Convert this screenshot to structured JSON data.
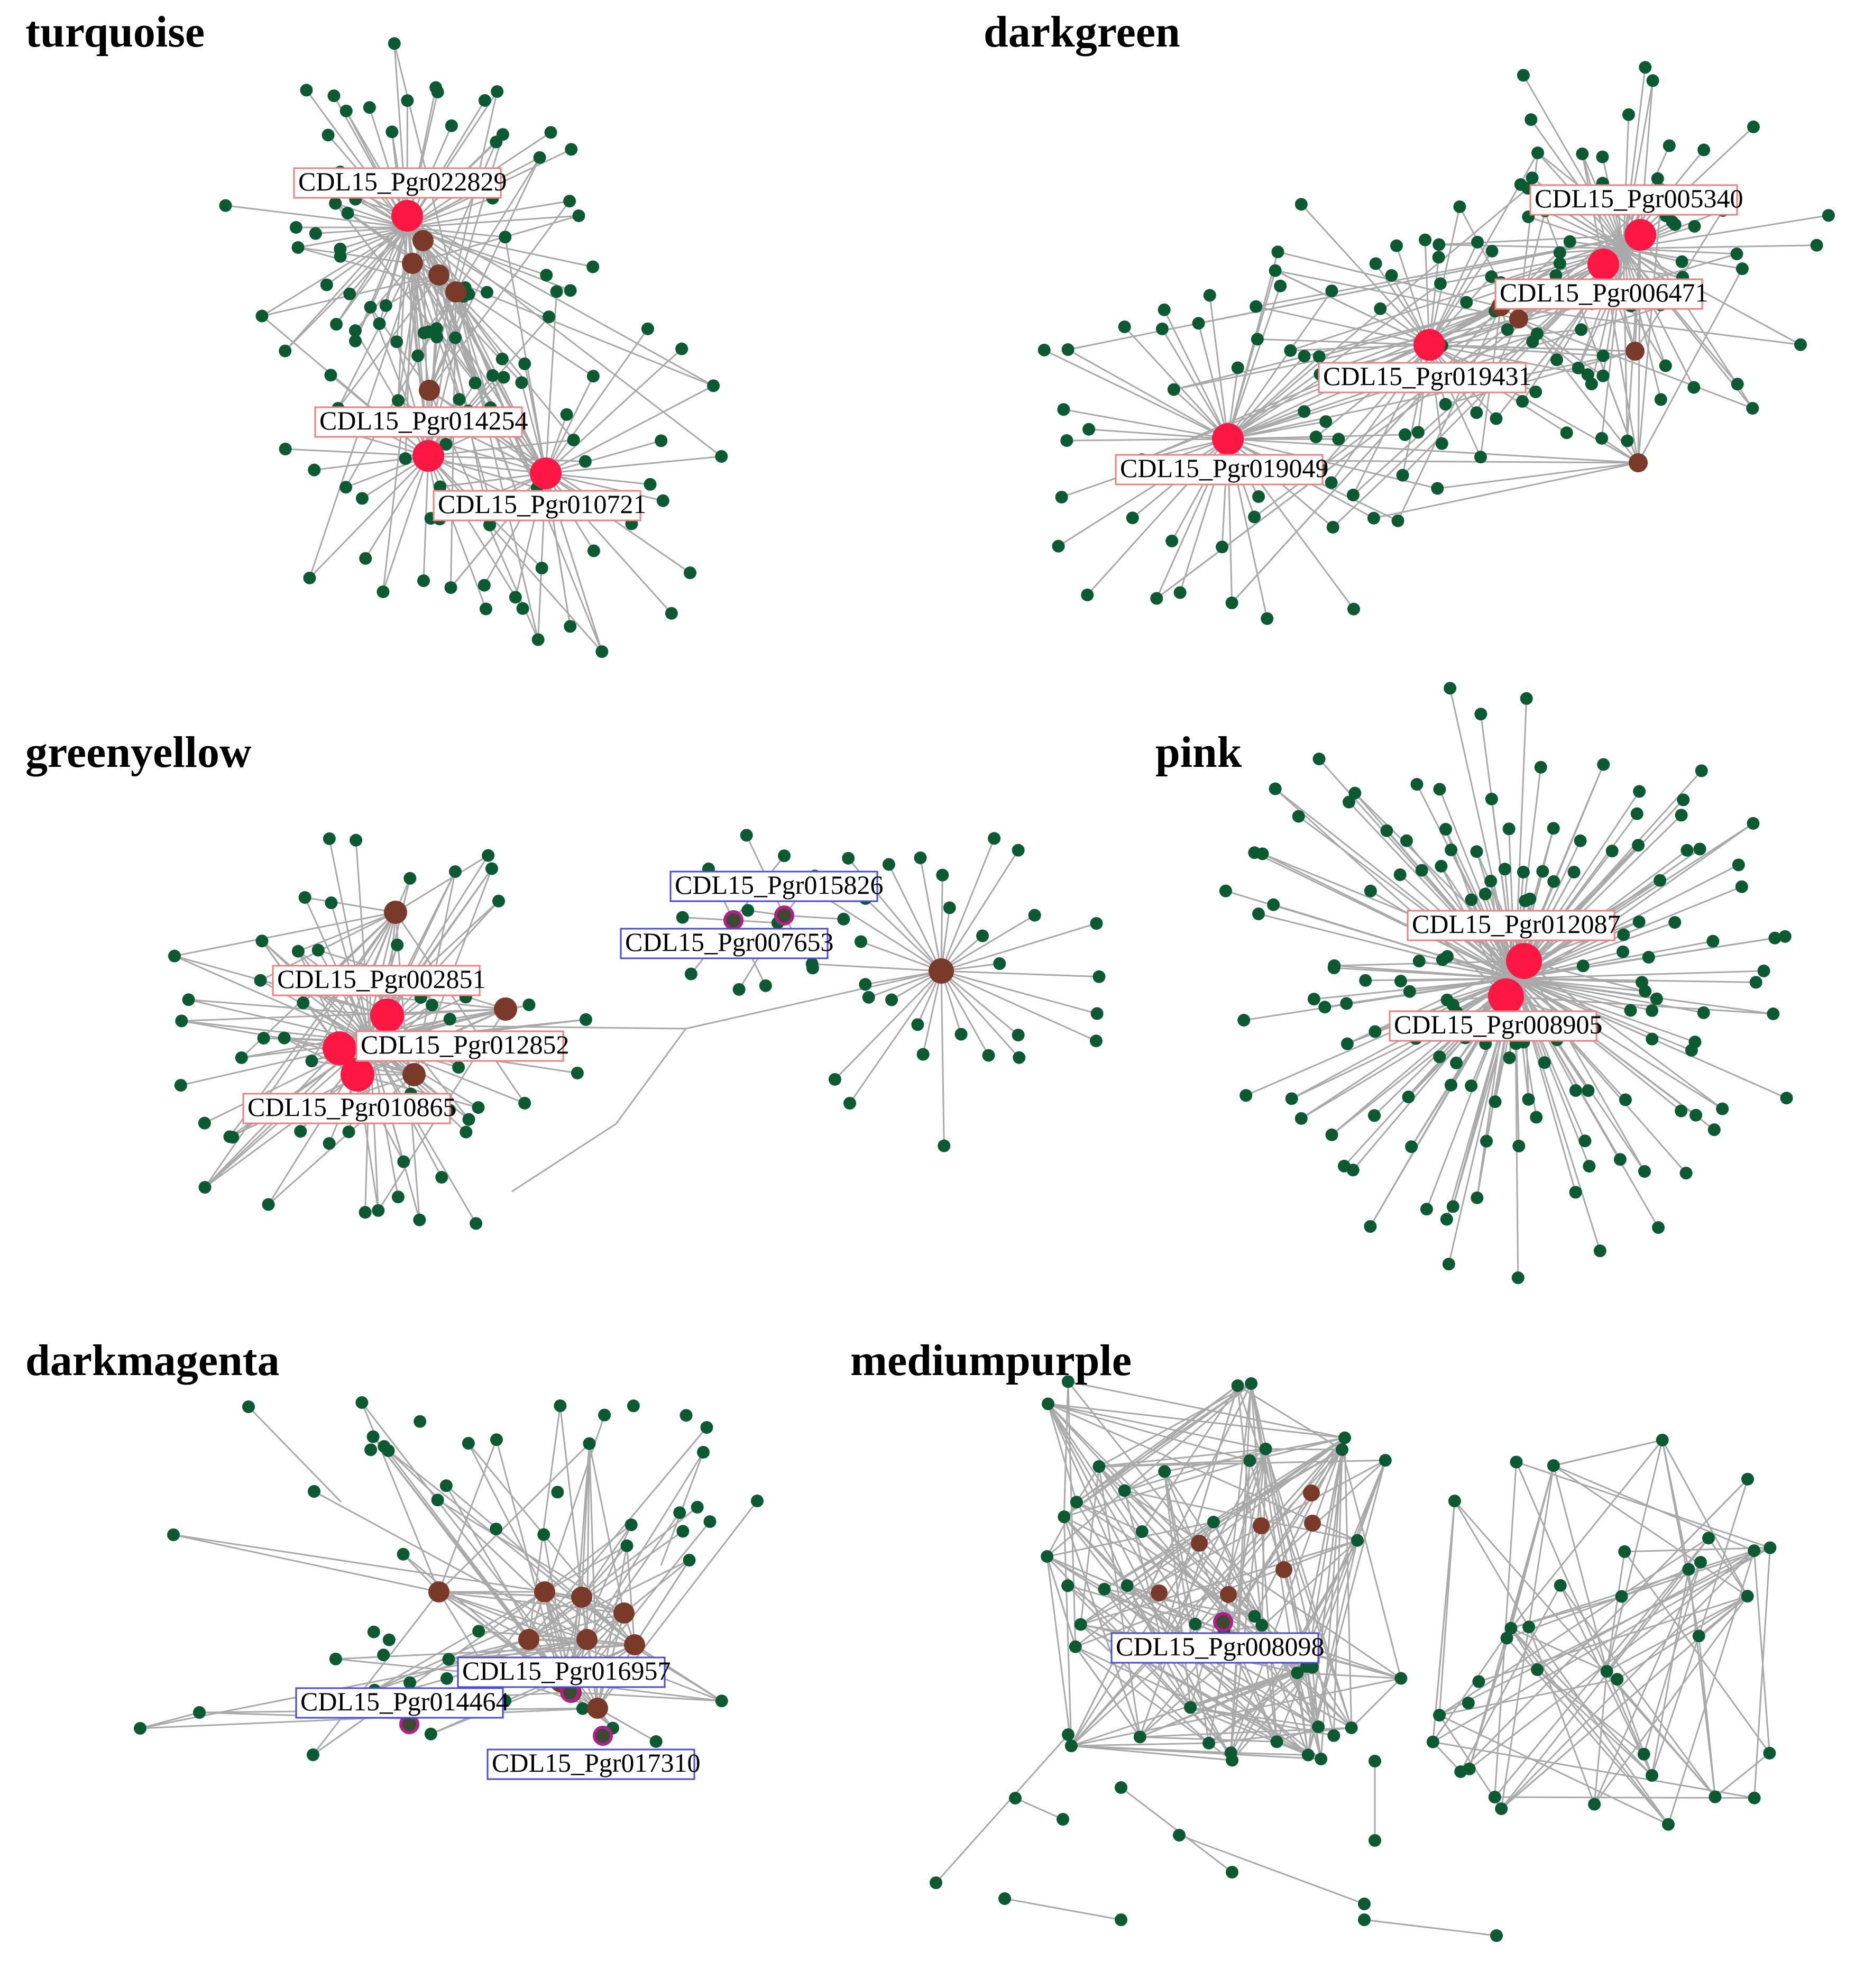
{
  "figure": {
    "panels": [
      {
        "id": "turquoise",
        "title": "turquoise",
        "hub_genes": [
          "CDL15_Pgr022829",
          "CDL15_Pgr014254",
          "CDL15_Pgr010721"
        ],
        "label_border_color": "#f08080"
      },
      {
        "id": "darkgreen",
        "title": "darkgreen",
        "hub_genes": [
          "CDL15_Pgr005340",
          "CDL15_Pgr006471",
          "CDL15_Pgr019431",
          "CDL15_Pgr019049"
        ],
        "label_border_color": "#f08080"
      },
      {
        "id": "greenyellow",
        "title": "greenyellow",
        "hub_genes": [
          "CDL15_Pgr002851",
          "CDL15_Pgr012852",
          "CDL15_Pgr010865",
          "CDL15_Pgr015826",
          "CDL15_Pgr007653"
        ],
        "label_border_color": "#f08080",
        "alt_label_border_color": "#4a4ae0"
      },
      {
        "id": "pink",
        "title": "pink",
        "hub_genes": [
          "CDL15_Pgr012087",
          "CDL15_Pgr008905"
        ],
        "label_border_color": "#f08080"
      },
      {
        "id": "darkmagenta",
        "title": "darkmagenta",
        "hub_genes": [
          "CDL15_Pgr016957",
          "CDL15_Pgr014464",
          "CDL15_Pgr017310"
        ],
        "label_border_color": "#4a4ae0"
      },
      {
        "id": "mediumpurple",
        "title": "mediumpurple",
        "hub_genes": [
          "CDL15_Pgr008098"
        ],
        "label_border_color": "#4a4ae0"
      }
    ],
    "colors": {
      "edge": "#a9a9a9",
      "leaf_node": "#0b5a32",
      "intermediate_node": "#7a3a2a",
      "hub_node": "#ff1744",
      "magenta_ring_node": "#b0208a",
      "dark_node": "#3c4a30"
    }
  }
}
